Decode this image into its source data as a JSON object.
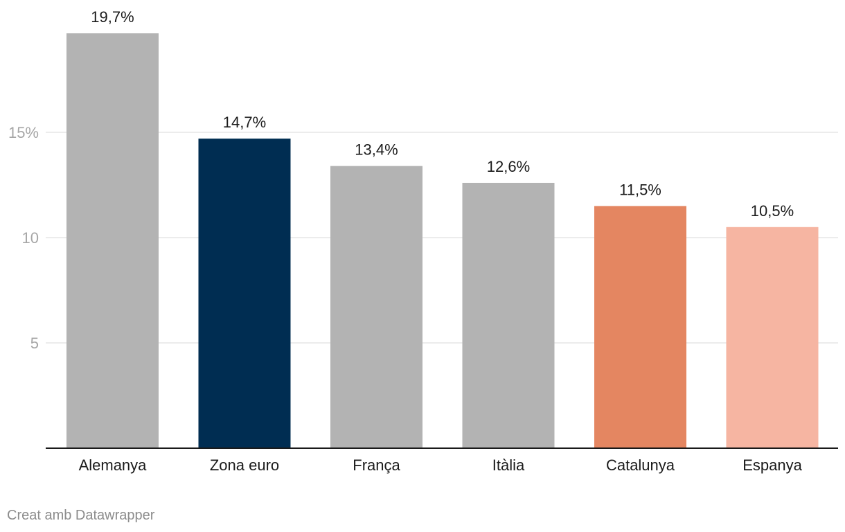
{
  "chart_data": {
    "type": "bar",
    "categories": [
      "Alemanya",
      "Zona euro",
      "França",
      "Itàlia",
      "Catalunya",
      "Espanya"
    ],
    "values": [
      19.7,
      14.7,
      13.4,
      12.6,
      11.5,
      10.5
    ],
    "value_labels": [
      "19,7%",
      "14,7%",
      "13,4%",
      "12,6%",
      "11,5%",
      "10,5%"
    ],
    "bar_colors": [
      "#b3b3b3",
      "#002d52",
      "#b3b3b3",
      "#b3b3b3",
      "#e48661",
      "#f6b5a2"
    ],
    "yticks": [
      {
        "value": 5,
        "label": "5"
      },
      {
        "value": 10,
        "label": "10"
      },
      {
        "value": 15,
        "label": "15%"
      }
    ],
    "ylim": [
      0,
      21
    ],
    "grid": true
  },
  "footer": {
    "credit": "Creat amb Datawrapper"
  },
  "colors": {
    "gridline": "#e5e5e5",
    "axis": "#1a1a1a",
    "tick_text": "#a6a6a6"
  }
}
